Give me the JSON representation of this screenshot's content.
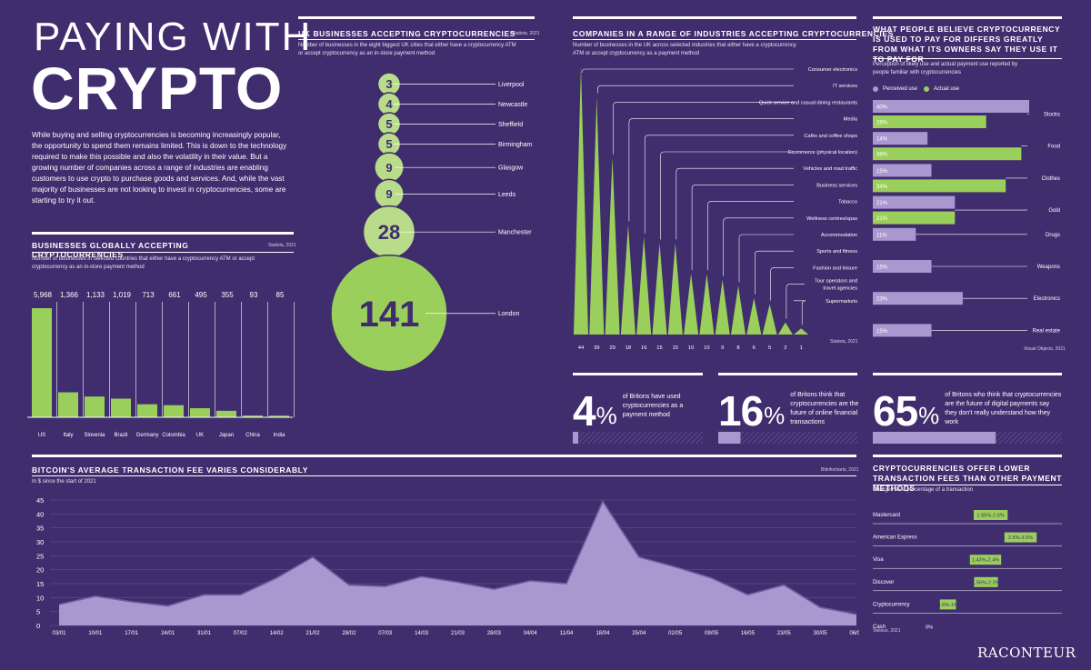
{
  "title": {
    "line1": "PAYING WITH",
    "line2": "CRYPTO"
  },
  "intro": "While buying and selling cryptocurrencies is becoming increasingly popular, the opportunity to spend them remains limited. This is down to the technology required to make this possible and also the volatility in their value. But a growing number of companies across a range of industries are enabling customers to use crypto to purchase goods and services. And, while the vast majority of businesses are not looking to invest in cryptocurrencies, some are starting to try it out.",
  "brand": "RACONTEUR",
  "colors": {
    "bg": "#3f2d6d",
    "green": "#9bcf5c",
    "lavender": "#a898cf",
    "green_light": "#b9dc8a"
  },
  "chart_data": [
    {
      "id": "global",
      "type": "bar",
      "title": "BUSINESSES GLOBALLY ACCEPTING CRYPTOCURRENCIES",
      "subtitle": "Number of businesses in selected countries that either have a cryptocurrency ATM or accept cryptocurrency as an in-store payment method",
      "source": "Statista, 2021",
      "categories": [
        "US",
        "Italy",
        "Slovenia",
        "Brazil",
        "Germany",
        "Colombia",
        "UK",
        "Japan",
        "China",
        "India"
      ],
      "values": [
        5968,
        1366,
        1133,
        1019,
        713,
        661,
        495,
        355,
        93,
        85
      ],
      "labels": [
        "5,968",
        "1,366",
        "1,133",
        "1,019",
        "713",
        "661",
        "495",
        "355",
        "93",
        "85"
      ]
    },
    {
      "id": "uk_cities",
      "type": "bubble",
      "title": "UK BUSINESSES ACCEPTING CRYPTOCURRENCIES",
      "subtitle": "Number of businesses in the eight biggest UK cities that either have a cryptocurrency ATM or accept cryptocurrency as an in-store payment method",
      "source": "Statista, 2021",
      "categories": [
        "Liverpool",
        "Newcastle",
        "Sheffield",
        "Birmingham",
        "Glasgow",
        "Leeds",
        "Manchester",
        "London"
      ],
      "values": [
        3,
        4,
        5,
        5,
        9,
        9,
        28,
        141
      ]
    },
    {
      "id": "industries",
      "type": "bar",
      "title": "COMPANIES IN A RANGE OF INDUSTRIES ACCEPTING CRYPTOCURRENCIES",
      "subtitle": "Number of businesses in the UK across selected industries that either have a cryptocurrency ATM or accept cryptocurrency as a payment method",
      "source": "Statista, 2021",
      "categories": [
        "Consumer electronics",
        "IT services",
        "Quick service and casual dining restaurants",
        "Media",
        "Cafés and coffee shops",
        "Ecommerce (physical location)",
        "Vehicles and road traffic",
        "Business services",
        "Tobacco",
        "Wellness centres/spas",
        "Accommodation",
        "Sports and fitness",
        "Fashion and leisure",
        "Tour operators and travel agencies",
        "Supermarkets"
      ],
      "values": [
        44,
        39,
        29,
        18,
        16,
        15,
        15,
        10,
        10,
        9,
        8,
        6,
        5,
        2,
        1
      ]
    },
    {
      "id": "perception",
      "type": "bar",
      "title": "WHAT PEOPLE BELIEVE CRYPTOCURRENCY IS USED TO PAY FOR DIFFERS GREATLY FROM WHAT ITS OWNERS SAY THEY USE IT TO PAY FOR",
      "subtitle": "Perception of likely use and actual payment use reported by people familiar with cryptocurrencies",
      "source": "Visual Objects, 2021",
      "categories": [
        "Stocks",
        "Food",
        "Clothes",
        "Gold",
        "Drugs",
        "Weapons",
        "Electronics",
        "Real estate"
      ],
      "series": [
        {
          "name": "Perceived use",
          "values": [
            40,
            14,
            15,
            21,
            11,
            15,
            23,
            15
          ]
        },
        {
          "name": "Actual use",
          "values": [
            29,
            38,
            34,
            21,
            null,
            null,
            null,
            null
          ]
        }
      ]
    },
    {
      "id": "fee",
      "type": "area",
      "title": "BITCOIN'S AVERAGE TRANSACTION FEE VARIES CONSIDERABLY",
      "subtitle": "In $ since the start of 2021",
      "source": "Bitinfocharts, 2021",
      "ylim": [
        0,
        45
      ],
      "yticks": [
        0,
        5,
        10,
        15,
        20,
        25,
        30,
        35,
        40,
        45
      ],
      "x_labels": [
        "03/01",
        "10/01",
        "17/01",
        "24/01",
        "31/01",
        "07/02",
        "14/02",
        "21/02",
        "28/02",
        "07/03",
        "14/03",
        "21/03",
        "28/03",
        "04/04",
        "11/04",
        "18/04",
        "25/04",
        "02/05",
        "09/05",
        "16/05",
        "23/05",
        "30/05",
        "06/06"
      ],
      "values": [
        7.5,
        10.5,
        8.5,
        7,
        11,
        11,
        17,
        24.5,
        14.5,
        14,
        17.5,
        15.5,
        13,
        16,
        15,
        44.5,
        24.5,
        21,
        17,
        11,
        14.5,
        6.5,
        4
      ]
    },
    {
      "id": "methods",
      "type": "range",
      "title": "CRYPTOCURRENCIES OFFER LOWER TRANSACTION FEES THAN OTHER PAYMENT METHODS",
      "subtitle": "Charges as a percentage of a transaction",
      "source": "Various, 2021",
      "categories": [
        "Mastercard",
        "American Express",
        "Visa",
        "Discover",
        "Cryptocurrency",
        "Cash"
      ],
      "ranges": [
        [
          1.55,
          2.6
        ],
        [
          2.5,
          3.5
        ],
        [
          1.43,
          2.4
        ],
        [
          1.56,
          2.3
        ],
        [
          0.5,
          1
        ],
        [
          0,
          0
        ]
      ],
      "labels": [
        "1.55%-2.6%",
        "2.5%-3.5%",
        "1.43%-2.4%",
        "1.56%-2.3%",
        "0.5%-1%",
        "0%"
      ]
    }
  ],
  "stats": [
    {
      "value": "4",
      "pct": "%",
      "text": "of Britons have used cryptocurrencies as a payment method",
      "fraction": 0.04
    },
    {
      "value": "16",
      "pct": "%",
      "text": "of Britons think that cryptocurrencies are the future of online financial transactions",
      "fraction": 0.16
    },
    {
      "value": "65",
      "pct": "%",
      "text": "of Britons who think that cryptocurrencies are the future of digital payments say they don't really understand how they work",
      "fraction": 0.65
    }
  ]
}
